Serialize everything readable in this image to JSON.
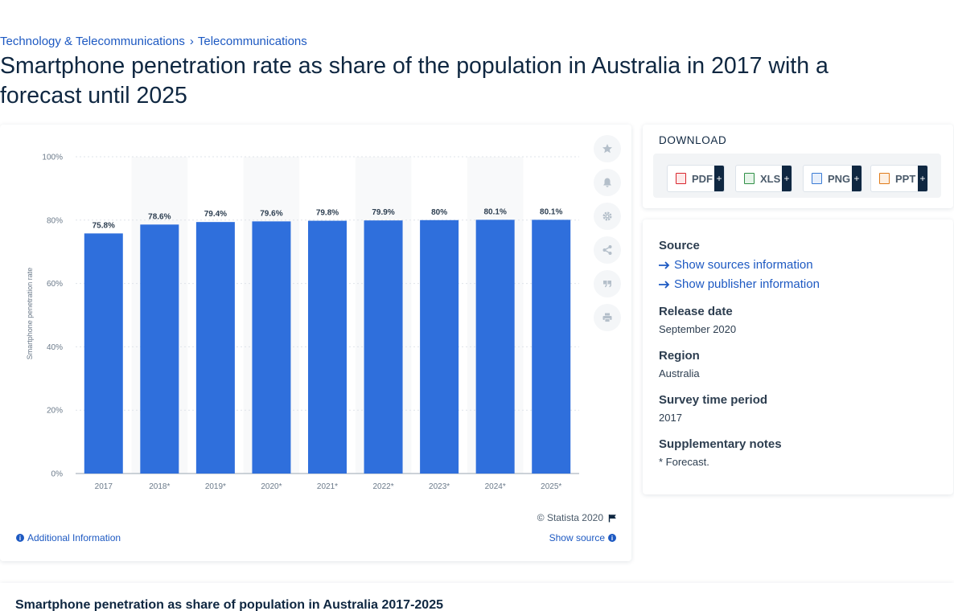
{
  "breadcrumb": {
    "items": [
      "Technology & Telecommunications",
      "Telecommunications"
    ],
    "separator": "›"
  },
  "page_title": "Smartphone penetration rate as share of the population in Australia in 2017 with a forecast until 2025",
  "colors": {
    "bar": "#2f6fdc",
    "link": "#1d59c2",
    "text": "#0f2741"
  },
  "chart_data": {
    "type": "bar",
    "categories": [
      "2017",
      "2018*",
      "2019*",
      "2020*",
      "2021*",
      "2022*",
      "2023*",
      "2024*",
      "2025*"
    ],
    "values": [
      75.8,
      78.6,
      79.4,
      79.6,
      79.8,
      79.9,
      80,
      80.1,
      80.1
    ],
    "data_labels": [
      "75.8%",
      "78.6%",
      "79.4%",
      "79.6%",
      "79.8%",
      "79.9%",
      "80%",
      "80.1%",
      "80.1%"
    ],
    "ylabel": "Smartphone penetration rate",
    "yticks": [
      "0%",
      "20%",
      "40%",
      "60%",
      "80%",
      "100%"
    ],
    "ylim": [
      0,
      100
    ],
    "grid": true
  },
  "toolbar": {
    "icons": [
      "star-icon",
      "bell-icon",
      "gear-icon",
      "share-icon",
      "quote-icon",
      "print-icon"
    ]
  },
  "footer": {
    "copyright": "© Statista 2020",
    "additional_info": "Additional Information",
    "show_source": "Show source"
  },
  "download": {
    "title": "DOWNLOAD",
    "buttons": [
      {
        "label": "PDF",
        "plus": "+",
        "color": "#d9262e"
      },
      {
        "label": "XLS",
        "plus": "+",
        "color": "#2f8f46"
      },
      {
        "label": "PNG",
        "plus": "+",
        "color": "#3a7bd5"
      },
      {
        "label": "PPT",
        "plus": "+",
        "color": "#e07b1a"
      }
    ]
  },
  "meta": {
    "source_heading": "Source",
    "show_sources": "Show sources information",
    "show_publisher": "Show publisher information",
    "release_heading": "Release date",
    "release_value": "September 2020",
    "region_heading": "Region",
    "region_value": "Australia",
    "survey_heading": "Survey time period",
    "survey_value": "2017",
    "notes_heading": "Supplementary notes",
    "notes_value": "* Forecast."
  },
  "bottom": {
    "title": "Smartphone penetration as share of population in Australia 2017-2025"
  }
}
